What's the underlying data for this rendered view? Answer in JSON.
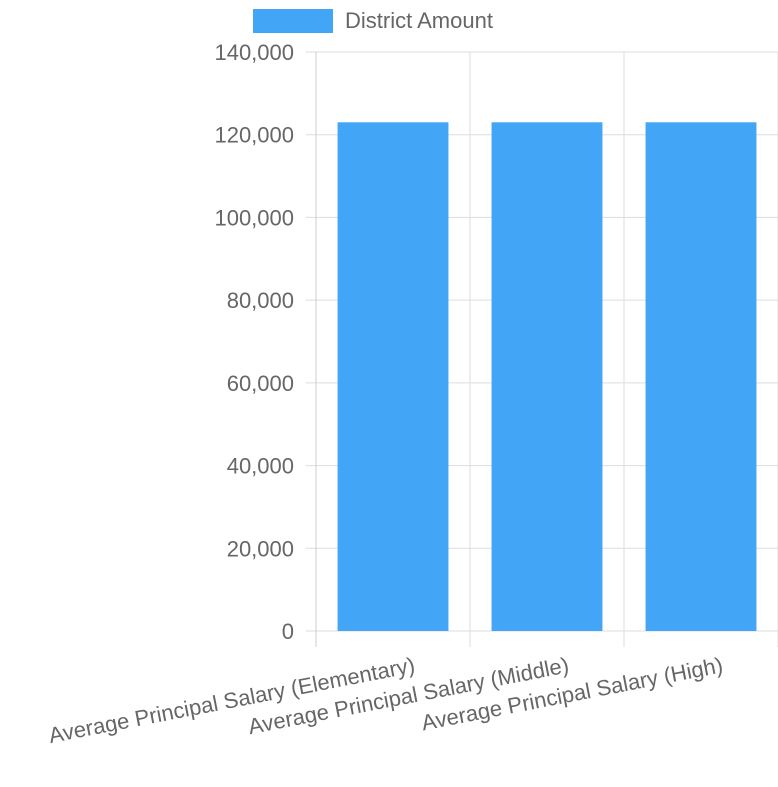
{
  "chart_data": {
    "type": "bar",
    "title": "",
    "xlabel": "",
    "ylabel": "",
    "categories": [
      "Average Principal Salary (Elementary)",
      "Average Principal Salary (Middle)",
      "Average Principal Salary (High)"
    ],
    "series": [
      {
        "name": "District Amount",
        "color": "#42a5f5",
        "values": [
          123000,
          123000,
          123000
        ]
      }
    ],
    "ylim": [
      0,
      140000
    ],
    "yticks": [
      0,
      20000,
      40000,
      60000,
      80000,
      100000,
      120000,
      140000
    ],
    "ytick_labels": [
      "0",
      "20,000",
      "40,000",
      "60,000",
      "80,000",
      "100,000",
      "120,000",
      "140,000"
    ],
    "grid": true,
    "legend_position": "top-center"
  },
  "colors": {
    "grid": "#dddddd",
    "axis": "#cccccc",
    "tick_text": "#666666"
  }
}
